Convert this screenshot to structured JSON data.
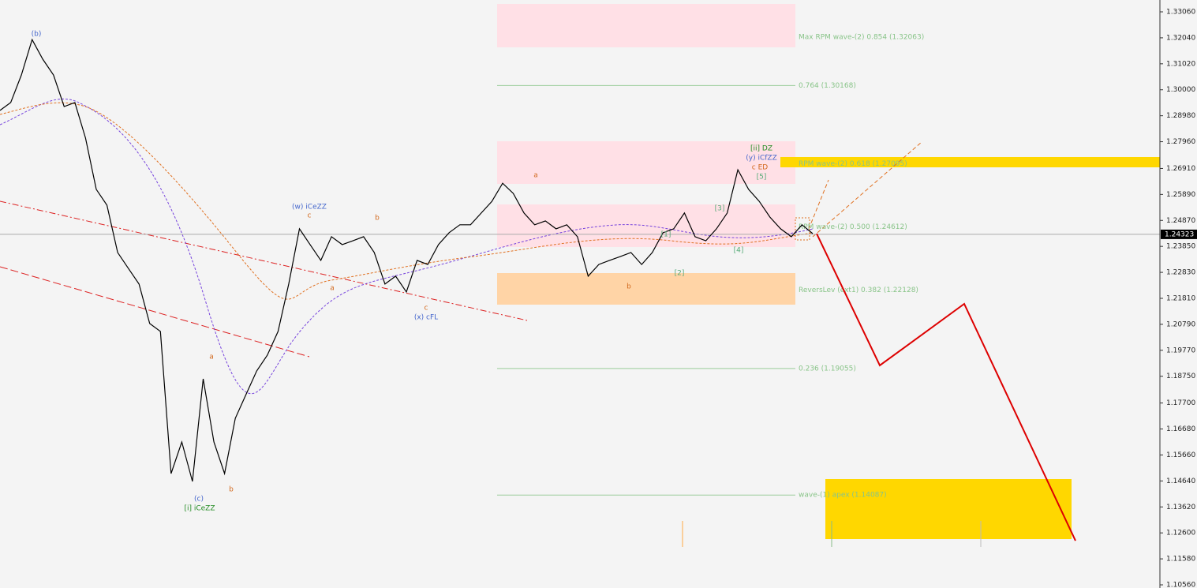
{
  "chart_data": {
    "type": "line",
    "ylim": [
      1.10436,
      1.33525
    ],
    "yticks": [
      {
        "value": 1.3306,
        "label": "1.33060"
      },
      {
        "value": 1.3204,
        "label": "1.32040"
      },
      {
        "value": 1.3102,
        "label": "1.31020"
      },
      {
        "value": 1.3,
        "label": "1.30000"
      },
      {
        "value": 1.2898,
        "label": "1.28980"
      },
      {
        "value": 1.2796,
        "label": "1.27960"
      },
      {
        "value": 1.2691,
        "label": "1.26910"
      },
      {
        "value": 1.2589,
        "label": "1.25890"
      },
      {
        "value": 1.2487,
        "label": "1.24870"
      },
      {
        "value": 1.2385,
        "label": "1.23850"
      },
      {
        "value": 1.2283,
        "label": "1.22830"
      },
      {
        "value": 1.2181,
        "label": "1.21810"
      },
      {
        "value": 1.2079,
        "label": "1.20790"
      },
      {
        "value": 1.1977,
        "label": "1.19770"
      },
      {
        "value": 1.1875,
        "label": "1.18750"
      },
      {
        "value": 1.177,
        "label": "1.17700"
      },
      {
        "value": 1.1668,
        "label": "1.16680"
      },
      {
        "value": 1.1566,
        "label": "1.15660"
      },
      {
        "value": 1.1464,
        "label": "1.14640"
      },
      {
        "value": 1.1362,
        "label": "1.13620"
      },
      {
        "value": 1.126,
        "label": "1.12600"
      },
      {
        "value": 1.1158,
        "label": "1.11580"
      },
      {
        "value": 1.1056,
        "label": "1.10560"
      }
    ],
    "current_price": {
      "value": 1.24323,
      "label": "1.24323"
    },
    "series": [
      {
        "color": "#000000",
        "values": [
          1.2919,
          1.295,
          1.3058,
          1.3197,
          1.312,
          1.3058,
          1.2934,
          1.295,
          1.281,
          1.2609,
          1.2547,
          1.2361,
          1.2299,
          1.2237,
          1.2082,
          1.2051,
          1.1493,
          1.1617,
          1.1462,
          1.1865,
          1.1617,
          1.1493,
          1.171,
          1.1803,
          1.1896,
          1.1958,
          1.2051,
          1.2237,
          1.2454,
          1.2392,
          1.233,
          1.2423,
          1.2392,
          1.2407,
          1.2423,
          1.2361,
          1.2237,
          1.2268,
          1.2206,
          1.233,
          1.2314,
          1.2392,
          1.2439,
          1.247,
          1.247,
          1.2516,
          1.2562,
          1.2633,
          1.2593,
          1.2516,
          1.247,
          1.2485,
          1.2454,
          1.247,
          1.2423,
          1.2268,
          1.2314,
          1.233,
          1.2345,
          1.2361,
          1.2314,
          1.2361,
          1.2439,
          1.2454,
          1.2516,
          1.2423,
          1.2407,
          1.2454,
          1.2516,
          1.2686,
          1.2609,
          1.2562,
          1.25,
          1.2454,
          1.2423,
          1.247,
          1.2435
        ]
      }
    ],
    "projection": {
      "color": "#dd0000",
      "values": [
        1.24351,
        1.19176,
        1.21593,
        1.12295
      ]
    },
    "zones": [
      {
        "color": "#ffe0e6",
        "values": [
          1.3337,
          1.31665
        ]
      },
      {
        "color": "#ffe0e6",
        "values": [
          1.27977,
          1.26304
        ]
      },
      {
        "color": "#ffe0e6",
        "values": [
          1.25498,
          1.23824
        ]
      },
      {
        "color": "#ffd4a6",
        "values": [
          1.22802,
          1.21562
        ]
      },
      {
        "color": "#ffd700",
        "values": [
          1.27358,
          1.26955
        ]
      },
      {
        "color": "#ffd700",
        "values": [
          1.14713,
          1.12357
        ]
      }
    ],
    "levels": [
      {
        "label": "Max RPM wave-(2) 0.854 (1.32063)",
        "value": 1.32063
      },
      {
        "label": "0.764 (1.30168)",
        "value": 1.30168
      },
      {
        "label": "RPM wave-(2) 0.618 (1.27095)",
        "value": 1.27095
      },
      {
        "label": "RPM wave-(2) 0.500 (1.24612)",
        "value": 1.24612
      },
      {
        "label": "ReversLev (ext1) 0.382 (1.22128)",
        "value": 1.22128
      },
      {
        "label": "0.236 (1.19055)",
        "value": 1.19055
      },
      {
        "label": "wave-(1) apex (1.14087)",
        "value": 1.14087
      }
    ],
    "annotations": [
      "(b)",
      "(c)",
      "[i] iCeZZ",
      "a",
      "b",
      "(w) iCeZZ",
      "c",
      "a",
      "b",
      "c",
      "(x) cFL",
      "a",
      "b",
      "[1]",
      "[2]",
      "[3]",
      "[4]",
      "[5]",
      "[ii] DZ",
      "(y) iCfZZ",
      "c ED"
    ]
  }
}
